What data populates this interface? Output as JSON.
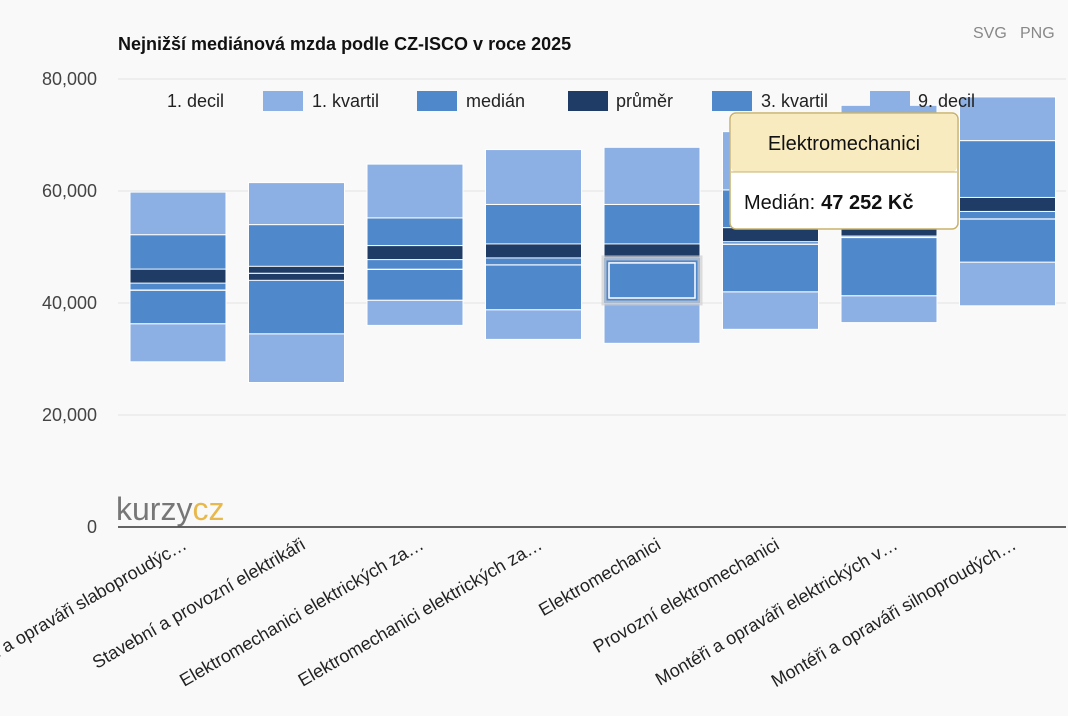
{
  "export": {
    "svg_label": "SVG",
    "png_label": "PNG"
  },
  "logo": {
    "part1": "kurzy",
    "part2": "cz"
  },
  "tooltip": {
    "title": "Elektromechanici",
    "label": "Medián:",
    "value": "47 252 Kč"
  },
  "colors": {
    "decile": "#8cb0e4",
    "quartile": "#5088cc",
    "mean": "#1f3c66",
    "tooltip_bg": "#f8ebc0",
    "tooltip_border": "#c9b26a",
    "background": "#f9f9f9"
  },
  "chart_data": {
    "type": "bar",
    "title": "Nejnižší mediánová mzda podle CZ-ISCO v roce 2025",
    "ylim": [
      0,
      80000
    ],
    "yticks": [
      0,
      20000,
      40000,
      60000,
      80000
    ],
    "ytick_labels": [
      "0",
      "20,000",
      "40,000",
      "60,000",
      "80,000"
    ],
    "grid": true,
    "legend_position": "top",
    "legend": [
      "1. decil",
      "1. kvartil",
      "medián",
      "průměr",
      "3. kvartil",
      "9. decil"
    ],
    "categories": [
      "Montéři a opraváři slaboproudýc…",
      "Stavební a provozní elektrikáři",
      "Elektromechanici elektrických za…",
      "Elektromechanici elektrických za…",
      "Elektromechanici",
      "Provozní elektromechanici",
      "Montéři a opraváři elektrických v…",
      "Montéři a opraváři silnoproudých…"
    ],
    "series": [
      {
        "name": "1. decil",
        "values": [
          29500,
          25800,
          36000,
          33500,
          32800,
          35300,
          36500,
          39500
        ]
      },
      {
        "name": "1. kvartil",
        "values": [
          36300,
          34500,
          40500,
          38800,
          40000,
          42000,
          41300,
          47300
        ]
      },
      {
        "name": "medián",
        "values": [
          42300,
          45300,
          46000,
          46800,
          47252,
          50500,
          51700,
          55000
        ]
      },
      {
        "name": "průměr",
        "values": [
          44800,
          45300,
          49000,
          49300,
          49300,
          52200,
          53200,
          57600
        ]
      },
      {
        "name": "3. kvartil",
        "values": [
          52200,
          54000,
          55200,
          57600,
          57600,
          60200,
          62000,
          69000
        ]
      },
      {
        "name": "9. decil",
        "values": [
          59800,
          61500,
          64800,
          67400,
          67800,
          70600,
          75300,
          76800
        ]
      }
    ],
    "highlighted_category": 4
  }
}
